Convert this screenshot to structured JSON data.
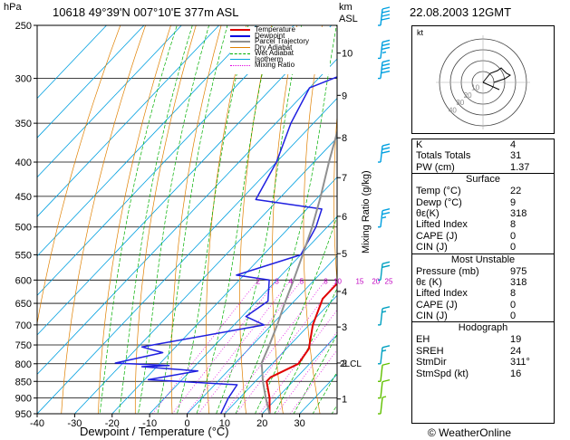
{
  "header": {
    "station": "10618  49°39'N  007°10'E   377m  ASL",
    "datetime": "22.08.2003  12GMT",
    "hpa_label": "hPa",
    "km_label": "km",
    "asl_label": "ASL",
    "credit": "© WeatherOnline",
    "mixing_ratio_label": "Mixing Ratio (g/kg)"
  },
  "legend": [
    {
      "label": "Temperature",
      "color": "#e00000"
    },
    {
      "label": "Dewpoint",
      "color": "#0000e0"
    },
    {
      "label": "Parcel Trajectory",
      "color": "#909090"
    },
    {
      "label": "Dry Adiabat",
      "color": "#e08000"
    },
    {
      "label": "Wet Adiabat",
      "color": "#00b000"
    },
    {
      "label": "Isotherm",
      "color": "#00a0e0"
    },
    {
      "label": "Mixing Ratio",
      "color": "#e000e0"
    }
  ],
  "indices": {
    "rows": [
      {
        "k": "K",
        "v": "4"
      },
      {
        "k": "Totals Totals",
        "v": "31"
      },
      {
        "k": "PW (cm)",
        "v": "1.37"
      }
    ],
    "surface_title": "Surface",
    "surface": [
      {
        "k": "Temp (°C)",
        "v": "22"
      },
      {
        "k": "Dewp (°C)",
        "v": "9"
      },
      {
        "k": "θε(K)",
        "v": "318"
      },
      {
        "k": "Lifted Index",
        "v": "8"
      },
      {
        "k": "CAPE (J)",
        "v": "0"
      },
      {
        "k": "CIN (J)",
        "v": "0"
      }
    ],
    "unstable_title": "Most Unstable",
    "unstable": [
      {
        "k": "Pressure (mb)",
        "v": "975"
      },
      {
        "k": "θε (K)",
        "v": "318"
      },
      {
        "k": "Lifted Index",
        "v": "8"
      },
      {
        "k": "CAPE (J)",
        "v": "0"
      },
      {
        "k": "CIN (J)",
        "v": "0"
      }
    ],
    "hodo_title": "Hodograph",
    "hodo": [
      {
        "k": "EH",
        "v": "19"
      },
      {
        "k": "SREH",
        "v": "24"
      },
      {
        "k": "StmDir",
        "v": "311°"
      },
      {
        "k": "StmSpd (kt)",
        "v": "16"
      }
    ]
  },
  "hodograph": {
    "unit_label": "kt",
    "ring_labels": [
      "10",
      "20",
      "30",
      "40"
    ]
  },
  "chart_data": {
    "type": "line",
    "title": "",
    "xlabel": "Dewpoint / Temperature (°C)",
    "ylabel": "hPa",
    "xlim": [
      -40,
      40
    ],
    "ylim": [
      950,
      250
    ],
    "x_ticks": [
      "-40",
      "-30",
      "-20",
      "-10",
      "0",
      "10",
      "20",
      "30"
    ],
    "p_ticks": [
      "250",
      "300",
      "350",
      "400",
      "450",
      "500",
      "550",
      "600",
      "650",
      "700",
      "750",
      "800",
      "850",
      "900",
      "950"
    ],
    "km_ticks": [
      {
        "km": "1",
        "p": 903
      },
      {
        "km": "2",
        "p": 798
      },
      {
        "km": "3",
        "p": 705
      },
      {
        "km": "4",
        "p": 624
      },
      {
        "km": "5",
        "p": 548
      },
      {
        "km": "6",
        "p": 482
      },
      {
        "km": "7",
        "p": 422
      },
      {
        "km": "8",
        "p": 368
      },
      {
        "km": "9",
        "p": 318
      },
      {
        "km": "10",
        "p": 275
      }
    ],
    "lcl_label": "2LCL",
    "lcl_p": 798,
    "mixing_ratio_labels": [
      "2",
      "3",
      "4",
      "5",
      "8",
      "10",
      "15",
      "20",
      "25"
    ],
    "mixing_ratio_values": [
      2,
      3,
      4,
      5,
      8,
      10,
      15,
      20,
      25
    ],
    "series": [
      {
        "name": "Temperature",
        "color": "#e00000",
        "width": 2,
        "points": [
          [
            950,
            22
          ],
          [
            900,
            18
          ],
          [
            850,
            13
          ],
          [
            838,
            13
          ],
          [
            800,
            17
          ],
          [
            760,
            16
          ],
          [
            700,
            11
          ],
          [
            640,
            7
          ],
          [
            600,
            7
          ],
          [
            550,
            3
          ],
          [
            500,
            -3
          ],
          [
            460,
            -8
          ],
          [
            450,
            -8
          ],
          [
            400,
            -13
          ],
          [
            350,
            -21
          ],
          [
            300,
            -30
          ],
          [
            250,
            -40
          ]
        ]
      },
      {
        "name": "Dewpoint",
        "color": "#2020e0",
        "width": 1.5,
        "points": [
          [
            950,
            9
          ],
          [
            900,
            7
          ],
          [
            860,
            6
          ],
          [
            845,
            -19
          ],
          [
            820,
            -8
          ],
          [
            808,
            -24
          ],
          [
            805,
            -17
          ],
          [
            798,
            -32
          ],
          [
            770,
            -22
          ],
          [
            755,
            -29
          ],
          [
            700,
            -2
          ],
          [
            680,
            -9
          ],
          [
            645,
            -7
          ],
          [
            600,
            -12
          ],
          [
            590,
            -22
          ],
          [
            550,
            -10
          ],
          [
            500,
            -13
          ],
          [
            470,
            -16
          ],
          [
            455,
            -36
          ],
          [
            400,
            -40
          ],
          [
            350,
            -46
          ],
          [
            310,
            -50
          ],
          [
            290,
            -42
          ],
          [
            270,
            -41
          ],
          [
            255,
            -48
          ],
          [
            250,
            -49
          ]
        ]
      },
      {
        "name": "Parcel Trajectory",
        "color": "#909090",
        "width": 2,
        "points": [
          [
            950,
            22
          ],
          [
            900,
            17
          ],
          [
            850,
            12
          ],
          [
            798,
            7
          ],
          [
            750,
            4.5
          ],
          [
            700,
            1.5
          ],
          [
            650,
            -2
          ],
          [
            600,
            -5.5
          ],
          [
            550,
            -9.5
          ],
          [
            500,
            -14
          ],
          [
            450,
            -19.5
          ],
          [
            400,
            -26
          ],
          [
            350,
            -33
          ],
          [
            300,
            -41
          ],
          [
            250,
            -51
          ]
        ]
      }
    ],
    "wind_barbs_kt": [
      {
        "p": 950,
        "dir": 300,
        "spd": 5
      },
      {
        "p": 900,
        "dir": 300,
        "spd": 10
      },
      {
        "p": 850,
        "dir": 290,
        "spd": 10
      },
      {
        "p": 800,
        "dir": 290,
        "spd": 15
      },
      {
        "p": 700,
        "dir": 290,
        "spd": 15
      },
      {
        "p": 600,
        "dir": 300,
        "spd": 20
      },
      {
        "p": 500,
        "dir": 300,
        "spd": 25
      },
      {
        "p": 400,
        "dir": 290,
        "spd": 30
      },
      {
        "p": 300,
        "dir": 290,
        "spd": 40
      },
      {
        "p": 280,
        "dir": 290,
        "spd": 35
      },
      {
        "p": 250,
        "dir": 290,
        "spd": 40
      }
    ]
  }
}
